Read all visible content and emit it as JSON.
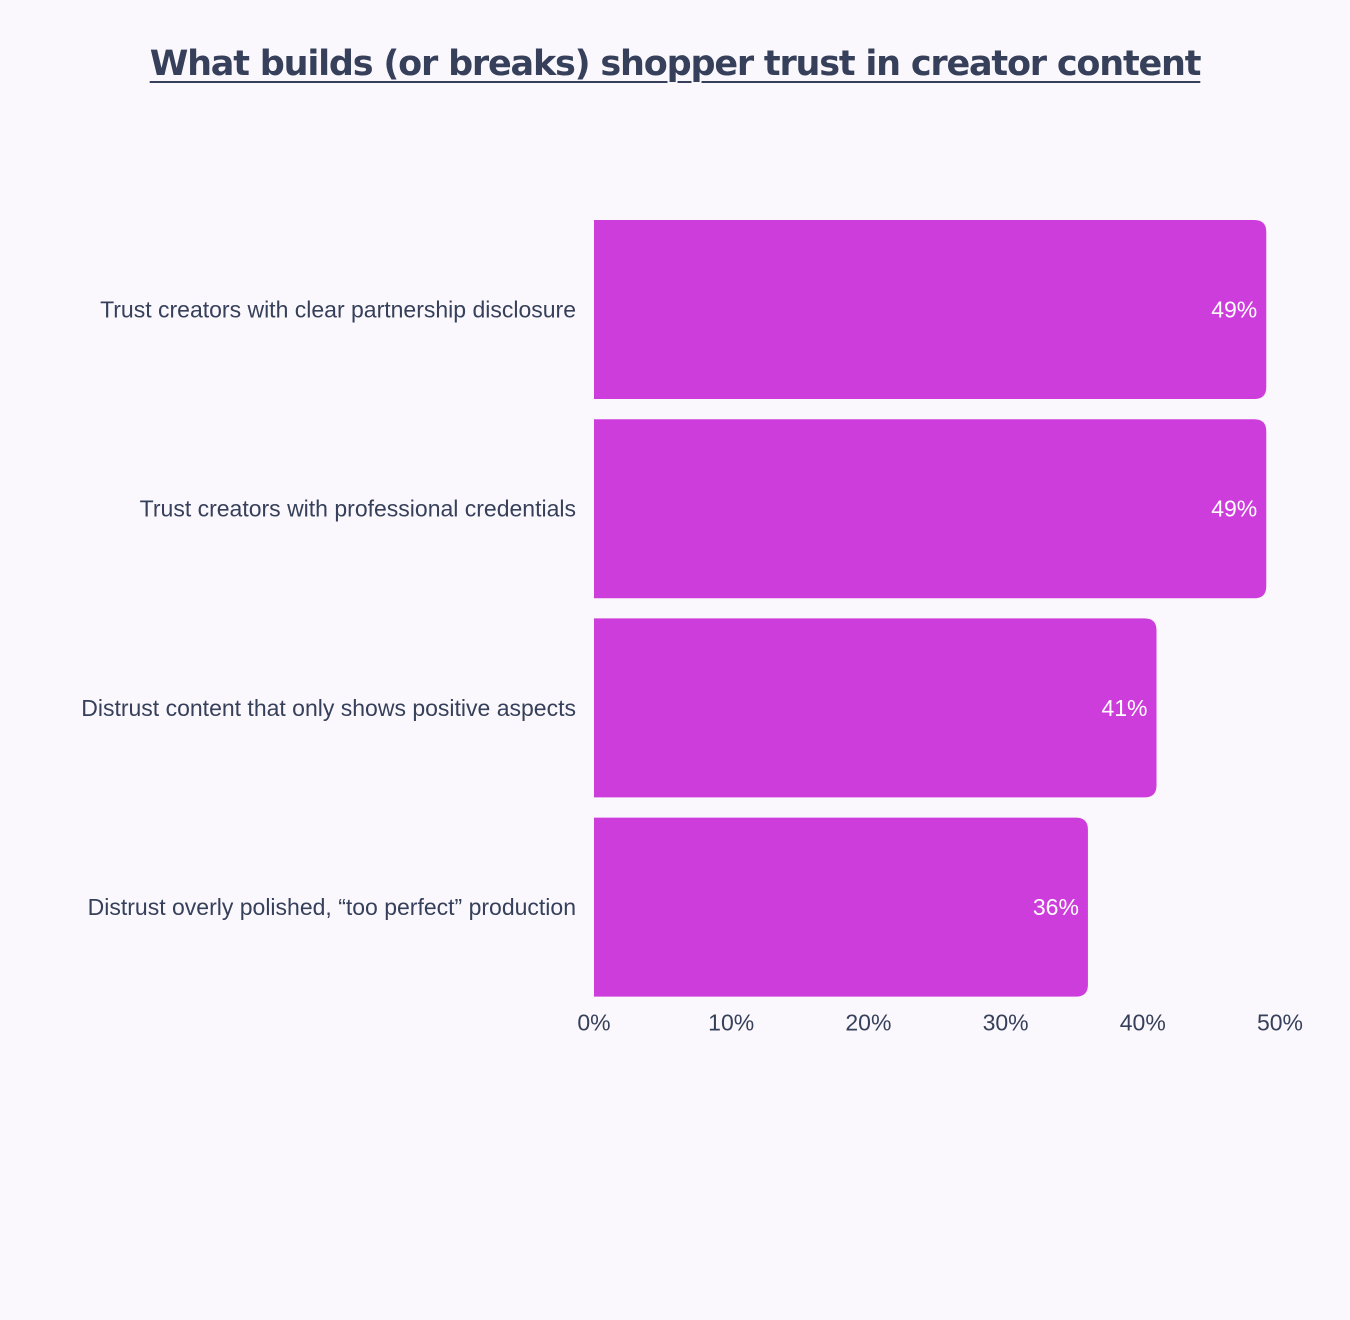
{
  "chart_data": {
    "type": "bar",
    "orientation": "horizontal",
    "title": "What builds (or breaks) shopper trust in creator content",
    "categories": [
      "Trust creators with clear partnership disclosure",
      "Trust creators with professional credentials",
      "Distrust content that only shows positive aspects",
      "Distrust overly polished, “too perfect” production"
    ],
    "values": [
      49,
      49,
      41,
      36
    ],
    "value_labels": [
      "49%",
      "49%",
      "41%",
      "36%"
    ],
    "xlim": [
      0,
      50
    ],
    "x_ticks": [
      0,
      10,
      20,
      30,
      40,
      50
    ],
    "x_tick_labels": [
      "0%",
      "10%",
      "20%",
      "30%",
      "40%",
      "50%"
    ],
    "grid": false,
    "legend": "none",
    "bar_color": "#cd3ddc",
    "text_color": "#36405a",
    "value_label_color": "#ffffff",
    "background": "#fbf8fd"
  }
}
